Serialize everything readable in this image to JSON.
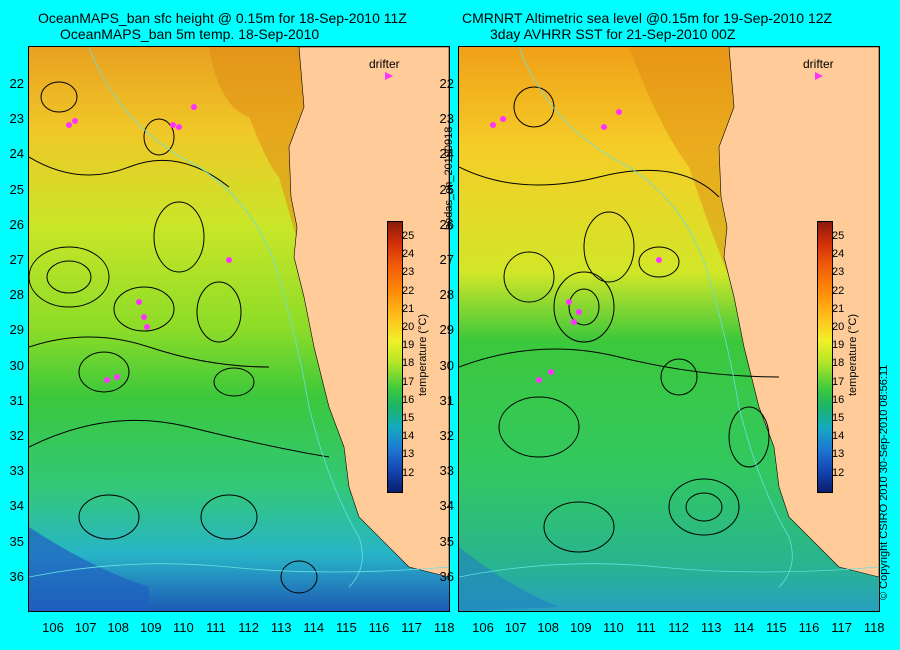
{
  "left_panel": {
    "title_line1": "OceanMAPS_ban sfc height @ 0.15m for 18-Sep-2010 11Z",
    "title_line2": "OceanMAPS_ban 5m temp. 18-Sep-2010",
    "drifter_label": "drifter"
  },
  "right_panel": {
    "title_line1": "CMRNRT Altimetric sea level  @0.15m  for 19-Sep-2010 12Z",
    "title_line2": "3day AVHRR SST for 21-Sep-2010 00Z",
    "drifter_label": "drifter"
  },
  "latitude_ticks": [
    "22",
    "23",
    "24",
    "25",
    "26",
    "27",
    "28",
    "29",
    "30",
    "31",
    "32",
    "33",
    "34",
    "35",
    "36"
  ],
  "longitude_ticks": [
    "106",
    "107",
    "108",
    "109",
    "110",
    "111",
    "112",
    "113",
    "114",
    "115",
    "116",
    "117",
    "118"
  ],
  "colorbar": {
    "label": "temperature (°C)",
    "ticks": [
      "25",
      "24",
      "23",
      "22",
      "21",
      "20",
      "19",
      "18",
      "17",
      "16",
      "15",
      "14",
      "13",
      "12"
    ]
  },
  "side_labels": {
    "run_id": "bodas_an_20100918",
    "copyright": "© Copyright CSIRO 2010    30-Sep-2010 08:56:11"
  },
  "colors": {
    "background": "#00ffff",
    "land": "#ffcc99",
    "drifter": "#ff33ff",
    "contour": "#000000",
    "bathymetry": "#66e0e0"
  }
}
